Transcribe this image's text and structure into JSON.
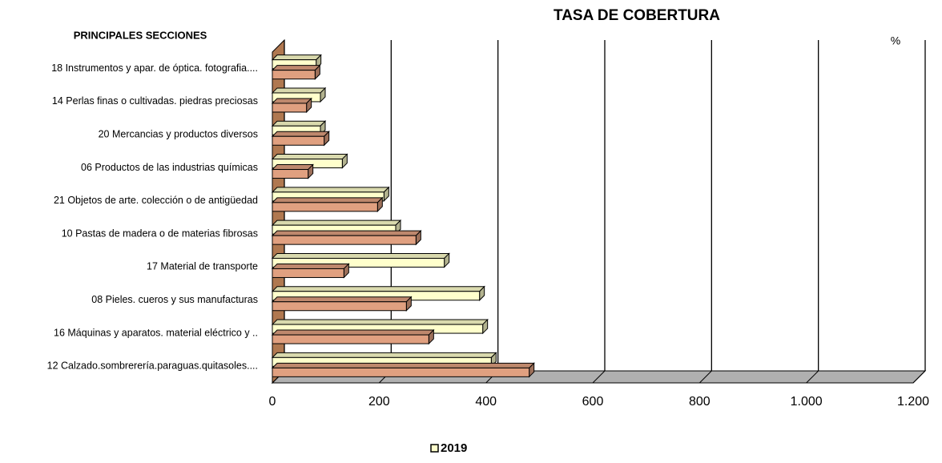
{
  "chart_data": {
    "type": "bar3d_horizontal",
    "title": "TASA DE COBERTURA",
    "category_axis_title": "PRINCIPALES SECCIONES",
    "unit_label": "%",
    "categories": [
      "18 Instrumentos y apar. de óptica. fotografia....",
      "14 Perlas finas o cultivadas. piedras preciosas",
      "20 Mercancias y productos diversos",
      "06 Productos de las industrias químicas",
      "21 Objetos de arte.  colección o de antigüedad",
      "10 Pastas de madera o de materias fibrosas",
      "17 Material de transporte",
      "08 Pieles. cueros y sus manufacturas",
      "16 Máquinas y aparatos. material eléctrico y ..",
      "12 Calzado.sombrerería.paraguas.quitasoles...."
    ],
    "series": [
      {
        "name": "2019",
        "color": "#ffffcc",
        "values": [
          82,
          90,
          90,
          131,
          209,
          231,
          322,
          388,
          394,
          410
        ]
      },
      {
        "color": "#e0a080",
        "values": [
          80,
          64,
          97,
          67,
          197,
          269,
          134,
          251,
          293,
          481
        ]
      }
    ],
    "xlim": [
      0,
      1200
    ],
    "xticks": [
      0,
      200,
      400,
      600,
      800,
      {
        "value": 1000,
        "label": "1.000"
      },
      {
        "value": 1200,
        "label": "1.200"
      }
    ],
    "grid": true
  }
}
